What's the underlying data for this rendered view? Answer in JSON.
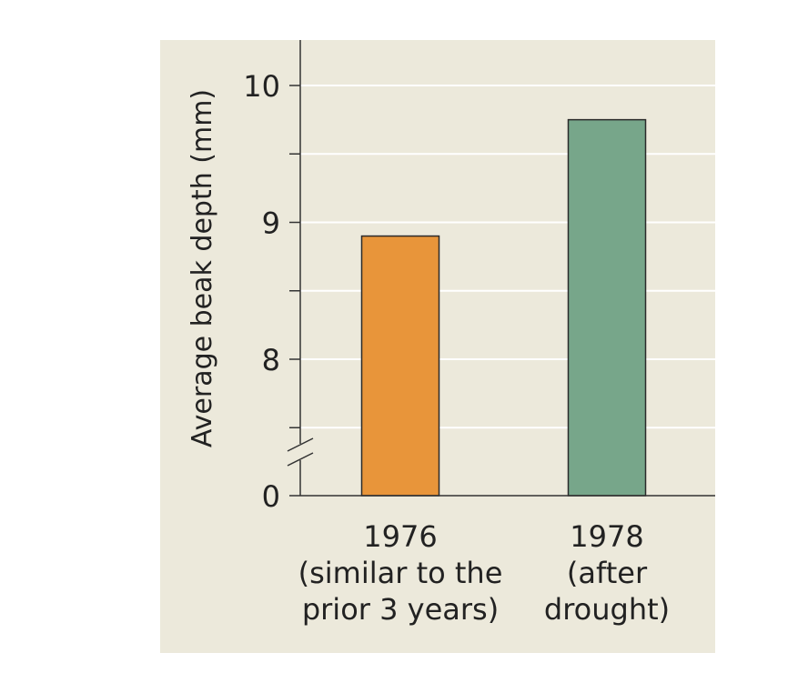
{
  "chart_data": {
    "type": "bar",
    "title": "",
    "ylabel": "Average beak depth (mm)",
    "xlabel": "",
    "axis_break": true,
    "ylim": [
      7.0,
      10.3
    ],
    "yticks": [
      {
        "value": 10,
        "label": "10"
      },
      {
        "value": 9.5,
        "label": ""
      },
      {
        "value": 9,
        "label": "9"
      },
      {
        "value": 8.5,
        "label": ""
      },
      {
        "value": 8,
        "label": "8"
      },
      {
        "value": 7.5,
        "label": ""
      }
    ],
    "baseline_label": "0",
    "grid": true,
    "categories": [
      {
        "lines": [
          "1976",
          "(similar to the",
          "prior 3 years)"
        ]
      },
      {
        "lines": [
          "1978",
          "(after",
          "drought)"
        ]
      }
    ],
    "values": [
      8.9,
      9.75
    ],
    "colors": [
      "#e8953a",
      "#77a68a"
    ],
    "background": "#ece9db"
  }
}
